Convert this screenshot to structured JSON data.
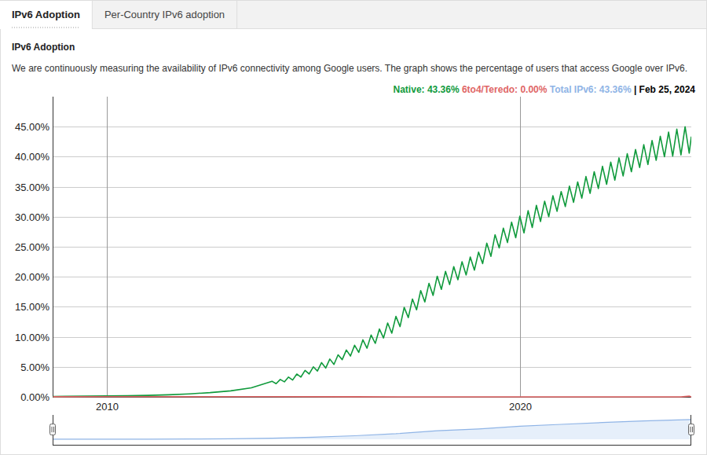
{
  "page": {
    "tabs": [
      "IPv6 Adoption",
      "Per-Country IPv6 adoption"
    ],
    "active_tab": 0
  },
  "chart_data": {
    "type": "line",
    "title": "IPv6 Adoption",
    "subtitle": "We are continuously measuring the availability of IPv6 connectivity among Google users. The graph shows the percentage of users that access Google over IPv6.",
    "date": "| Feb 25, 2024",
    "legend": "top-right",
    "grid": true,
    "xlim": [
      2008.69,
      2024.15
    ],
    "xticks": [
      2010,
      2020
    ],
    "ylim": [
      0,
      50
    ],
    "yticks": [
      {
        "value": 0,
        "label": "0.00%"
      },
      {
        "value": 5,
        "label": "5.00%"
      },
      {
        "value": 10,
        "label": "10.00%"
      },
      {
        "value": 15,
        "label": "15.00%"
      },
      {
        "value": 20,
        "label": "20.00%"
      },
      {
        "value": 25,
        "label": "25.00%"
      },
      {
        "value": 30,
        "label": "30.00%"
      },
      {
        "value": 35,
        "label": "35.00%"
      },
      {
        "value": 40,
        "label": "40.00%"
      },
      {
        "value": 45,
        "label": "45.00%"
      }
    ],
    "series": [
      {
        "name": "Native",
        "color": "#109a3c",
        "type": "line",
        "summary": {
          "value": 43.36,
          "label": "Native: 43.36%"
        },
        "x": [
          2008.7,
          2009.0,
          2009.5,
          2010.0,
          2010.5,
          2011.0,
          2011.5,
          2012.0,
          2012.5,
          2013.0,
          2013.5,
          2014.0,
          2014.1,
          2014.2,
          2014.3,
          2014.4,
          2014.5,
          2014.6,
          2014.7,
          2014.8,
          2014.9,
          2015.0,
          2015.1,
          2015.2,
          2015.3,
          2015.4,
          2015.5,
          2015.6,
          2015.7,
          2015.8,
          2015.9,
          2016.0,
          2016.1,
          2016.2,
          2016.3,
          2016.4,
          2016.5,
          2016.6,
          2016.7,
          2016.8,
          2016.9,
          2017.0,
          2017.1,
          2017.2,
          2017.3,
          2017.4,
          2017.5,
          2017.6,
          2017.7,
          2017.8,
          2017.9,
          2018.0,
          2018.1,
          2018.2,
          2018.3,
          2018.4,
          2018.5,
          2018.6,
          2018.7,
          2018.8,
          2018.9,
          2019.0,
          2019.1,
          2019.2,
          2019.3,
          2019.4,
          2019.5,
          2019.6,
          2019.7,
          2019.8,
          2019.9,
          2020.0,
          2020.1,
          2020.2,
          2020.3,
          2020.4,
          2020.5,
          2020.6,
          2020.7,
          2020.8,
          2020.9,
          2021.0,
          2021.1,
          2021.2,
          2021.3,
          2021.4,
          2021.5,
          2021.6,
          2021.7,
          2021.8,
          2021.9,
          2022.0,
          2022.1,
          2022.2,
          2022.3,
          2022.4,
          2022.5,
          2022.6,
          2022.7,
          2022.8,
          2022.9,
          2023.0,
          2023.1,
          2023.2,
          2023.3,
          2023.4,
          2023.5,
          2023.6,
          2023.7,
          2023.8,
          2023.9,
          2024.0,
          2024.1,
          2024.15
        ],
        "values": [
          0.05,
          0.1,
          0.12,
          0.15,
          0.2,
          0.25,
          0.35,
          0.5,
          0.7,
          1.0,
          1.5,
          2.6,
          2.2,
          2.9,
          2.5,
          3.3,
          2.8,
          3.8,
          3.3,
          4.4,
          3.8,
          5.0,
          4.3,
          5.7,
          4.8,
          6.3,
          5.4,
          7.0,
          6.2,
          7.8,
          6.8,
          8.6,
          7.4,
          9.5,
          8.1,
          10.3,
          8.9,
          11.3,
          9.8,
          12.3,
          10.6,
          13.4,
          11.7,
          14.9,
          13.2,
          16.3,
          14.5,
          17.7,
          15.8,
          18.9,
          16.9,
          20.1,
          17.9,
          20.9,
          18.7,
          21.7,
          19.5,
          22.5,
          20.3,
          23.3,
          21.1,
          24.1,
          22.2,
          25.6,
          23.4,
          27.0,
          24.8,
          28.1,
          25.7,
          29.1,
          26.5,
          30.1,
          27.3,
          31.0,
          28.2,
          31.9,
          29.2,
          32.6,
          30.0,
          33.5,
          30.9,
          34.2,
          31.7,
          35.1,
          32.4,
          35.8,
          33.1,
          36.7,
          33.9,
          37.5,
          34.7,
          38.4,
          35.4,
          39.1,
          36.1,
          39.8,
          36.8,
          40.5,
          37.5,
          41.2,
          38.2,
          42.0,
          38.7,
          42.7,
          39.4,
          43.4,
          40.0,
          44.1,
          40.1,
          44.6,
          40.3,
          45.0,
          40.6,
          43.36
        ]
      },
      {
        "name": "6to4/Teredo",
        "color": "#e06666",
        "type": "line",
        "summary": {
          "value": 0,
          "label": "6to4/Teredo: 0.00%"
        },
        "x": [
          2008.7,
          2010,
          2012,
          2014,
          2016,
          2018,
          2020,
          2022,
          2023.9,
          2024.1,
          2024.15
        ],
        "values": [
          0.02,
          0.03,
          0.04,
          0.03,
          0.01,
          0,
          0,
          0,
          0,
          0.12,
          0
        ]
      },
      {
        "name": "Total IPv6",
        "color": "#8fb4e6",
        "type": "area",
        "summary": {
          "value": 43.36,
          "label": "Total IPv6: 43.36%"
        },
        "x": [
          2008.7,
          2010,
          2011,
          2012,
          2013,
          2014,
          2015,
          2016,
          2017,
          2018,
          2019,
          2020,
          2021,
          2022,
          2023,
          2024.15
        ],
        "values": [
          0.1,
          0.15,
          0.25,
          0.5,
          1,
          2.3,
          4.5,
          7.8,
          12.2,
          18.8,
          22.8,
          28.5,
          32.8,
          36.7,
          40.2,
          43.36
        ]
      }
    ]
  }
}
